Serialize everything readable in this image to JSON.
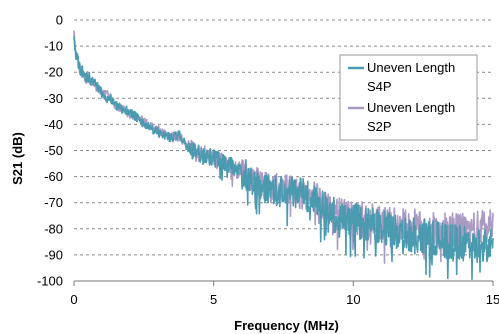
{
  "chart_data": {
    "type": "line",
    "title": "",
    "xlabel": "Frequency (MHz)",
    "ylabel": "S21 (dB)",
    "xlim": [
      0,
      15
    ],
    "ylim": [
      -100,
      0
    ],
    "xticks": [
      "0",
      "5",
      "10",
      "15"
    ],
    "yticks": [
      "0",
      "-10",
      "-20",
      "-30",
      "-40",
      "-50",
      "-60",
      "-70",
      "-80",
      "-90",
      "-100"
    ],
    "grid": "horizontal dashed",
    "legend_position": "top-right",
    "series": [
      {
        "name": "Uneven Length S4P",
        "legend_lines": [
          "Uneven Length",
          "S4P"
        ],
        "color": "#4a9bb0",
        "x": [
          0,
          0.05,
          0.1,
          0.2,
          0.3,
          0.4,
          0.5,
          0.6,
          0.7,
          0.8,
          1.0,
          1.2,
          1.4,
          1.5,
          1.7,
          2.0,
          2.2,
          2.5,
          2.8,
          3.0,
          3.2,
          3.5,
          3.8,
          4.0,
          4.2,
          4.4,
          4.6,
          4.8,
          5.0,
          5.2,
          5.4,
          5.6,
          5.8,
          6.0,
          6.3,
          6.6,
          7.0,
          7.5,
          8.0,
          8.5,
          9.0,
          9.5,
          10.0,
          10.5,
          11.0,
          11.5,
          12.0,
          12.5,
          13.0,
          13.5,
          14.0,
          14.5,
          15.0
        ],
        "y": [
          -5,
          -12,
          -15,
          -18,
          -20,
          -22,
          -21,
          -23,
          -24,
          -25,
          -28,
          -30,
          -31,
          -33,
          -34,
          -35,
          -37,
          -40,
          -42,
          -43,
          -44,
          -45,
          -44,
          -48,
          -50,
          -51,
          -52,
          -52,
          -53,
          -54,
          -55,
          -56,
          -56,
          -58,
          -60,
          -63,
          -65,
          -66,
          -66,
          -68,
          -72,
          -75,
          -77,
          -78,
          -80,
          -81,
          -82,
          -83,
          -84,
          -85,
          -86,
          -86,
          -87
        ]
      },
      {
        "name": "Uneven Length S2P",
        "legend_lines": [
          "Uneven Length",
          "S2P"
        ],
        "color": "#a99bc4",
        "x": [
          0,
          0.05,
          0.1,
          0.2,
          0.3,
          0.4,
          0.5,
          0.6,
          0.7,
          0.8,
          1.0,
          1.2,
          1.4,
          1.5,
          1.7,
          2.0,
          2.2,
          2.5,
          2.8,
          3.0,
          3.2,
          3.5,
          3.8,
          4.0,
          4.2,
          4.4,
          4.6,
          4.8,
          5.0,
          5.2,
          5.4,
          5.6,
          5.8,
          6.0,
          6.3,
          6.6,
          7.0,
          7.5,
          8.0,
          8.5,
          9.0,
          9.5,
          10.0,
          10.5,
          11.0,
          11.5,
          12.0,
          12.5,
          13.0,
          13.5,
          14.0,
          14.5,
          15.0
        ],
        "y": [
          -4,
          -11,
          -14,
          -18,
          -21,
          -22,
          -22,
          -24,
          -24,
          -26,
          -28,
          -29,
          -31,
          -33,
          -34,
          -36,
          -37,
          -39,
          -41,
          -42,
          -44,
          -44,
          -45,
          -47,
          -49,
          -51,
          -51,
          -53,
          -53,
          -54,
          -55,
          -55,
          -57,
          -58,
          -61,
          -62,
          -64,
          -65,
          -66,
          -67,
          -71,
          -74,
          -76,
          -77,
          -78,
          -79,
          -79,
          -80,
          -81,
          -81,
          -81,
          -80,
          -78
        ]
      }
    ]
  }
}
